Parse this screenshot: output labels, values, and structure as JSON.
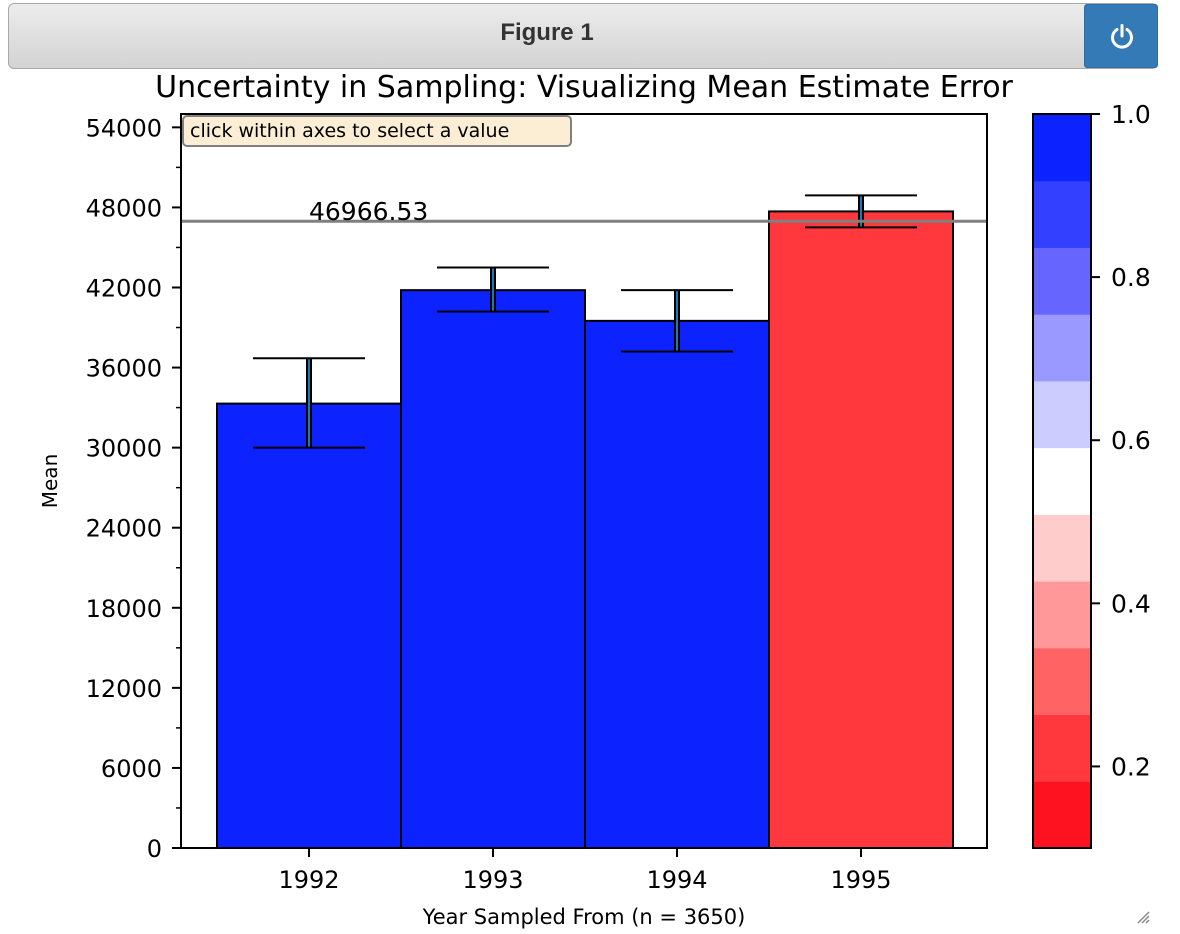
{
  "window": {
    "title": "Figure 1",
    "power_button_icon": "power-icon"
  },
  "chart_data": {
    "type": "bar",
    "title": "Uncertainty in Sampling: Visualizing Mean Estimate Error",
    "xlabel": "Year Sampled From (n = 3650)",
    "ylabel": "Mean",
    "ylim": [
      0,
      55000
    ],
    "yticks": [
      "0",
      "6000",
      "12000",
      "18000",
      "24000",
      "30000",
      "36000",
      "42000",
      "48000",
      "54000"
    ],
    "categories": [
      "1992",
      "1993",
      "1994",
      "1995"
    ],
    "values": [
      33300,
      41800,
      39500,
      47700
    ],
    "error_low": [
      30000,
      40200,
      37200,
      46500
    ],
    "error_high": [
      36700,
      43500,
      41800,
      48900
    ],
    "bar_colors": [
      "#0c22ff",
      "#0c22ff",
      "#0c22ff",
      "#ff383d"
    ],
    "hline_value": 46966.53,
    "hline_label": "46966.53",
    "annotation": "click within axes to select a value",
    "grid": false,
    "colorbar": {
      "ticks": [
        "0.2",
        "0.4",
        "0.6",
        "0.8",
        "1.0"
      ],
      "tick_values": [
        0.2,
        0.4,
        0.6,
        0.8,
        1.0
      ],
      "range": [
        0.1,
        1.0
      ],
      "segment_colors": [
        "#ff121f",
        "#ff383d",
        "#ff6363",
        "#ff9999",
        "#ffcccc",
        "#ffffff",
        "#ccccff",
        "#9999ff",
        "#6666ff",
        "#3340ff",
        "#0c22ff"
      ]
    }
  }
}
